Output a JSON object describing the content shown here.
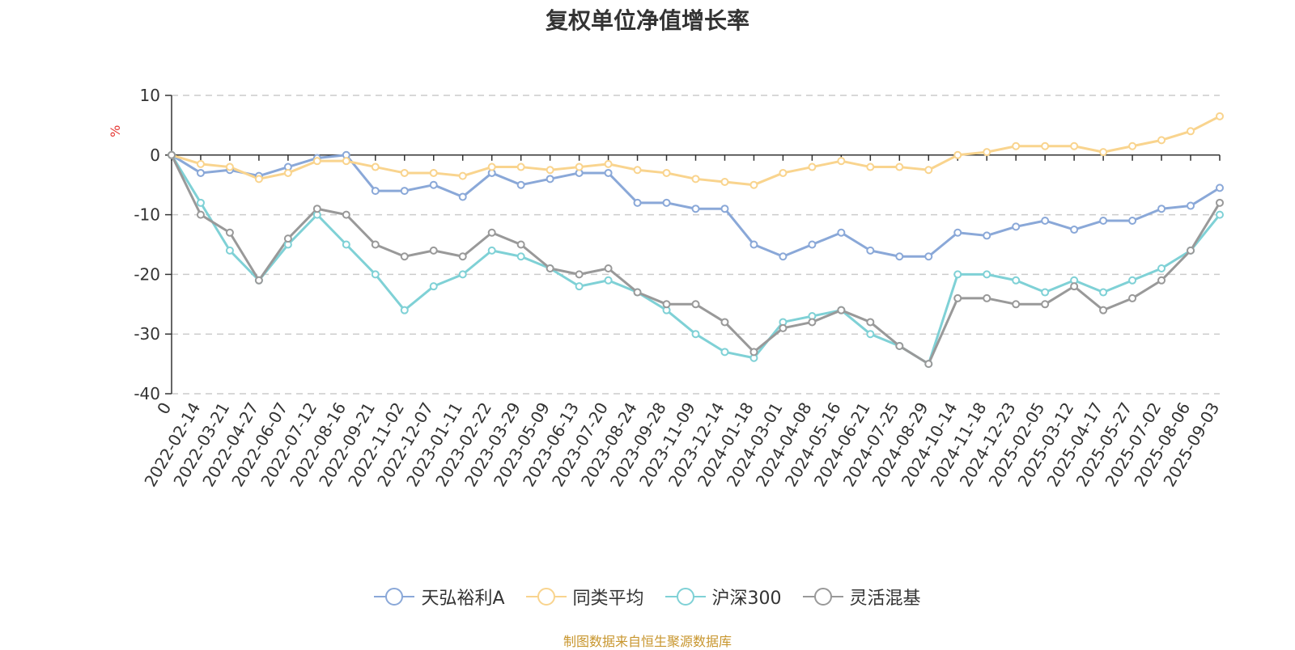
{
  "title": "复权单位净值增长率",
  "source_note": "制图数据来自恒生聚源数据库",
  "chart_data": {
    "type": "line",
    "title": "复权单位净值增长率",
    "ylabel": "%",
    "ylim": [
      -40,
      10
    ],
    "yticks": [
      10,
      0,
      -10,
      -20,
      -30,
      -40
    ],
    "grid": true,
    "legend_position": "bottom",
    "x_tick_labels": [
      "0",
      "2022-02-14",
      "2022-03-21",
      "2022-04-27",
      "2022-06-07",
      "2022-07-12",
      "2022-08-16",
      "2022-09-21",
      "2022-11-02",
      "2022-12-07",
      "2023-01-11",
      "2023-02-22",
      "2023-03-29",
      "2023-05-09",
      "2023-06-13",
      "2023-07-20",
      "2023-08-24",
      "2023-09-28",
      "2023-11-09",
      "2023-12-14",
      "2024-01-18",
      "2024-03-01",
      "2024-04-08",
      "2024-05-16",
      "2024-06-21",
      "2024-07-25",
      "2024-08-29",
      "2024-10-14",
      "2024-11-18",
      "2024-12-23",
      "2025-02-05",
      "2025-03-12",
      "2025-04-17",
      "2025-05-27",
      "2025-07-02",
      "2025-08-06",
      "2025-09-03"
    ],
    "x_positions": [
      0,
      1,
      2,
      3,
      4,
      5,
      6,
      7,
      8,
      9,
      10,
      11,
      12,
      13,
      14,
      15,
      16,
      17,
      18,
      19,
      20,
      21,
      22,
      23,
      24,
      25,
      26,
      27,
      28,
      29,
      30,
      31,
      32,
      33,
      34,
      35,
      36
    ],
    "series": [
      {
        "name": "天弘裕利A",
        "color": "#8aa8d8",
        "values": [
          0,
          -3,
          -2.5,
          -3.5,
          -2,
          -0.5,
          0,
          -6,
          -6,
          -5,
          -7,
          -3,
          -5,
          -4,
          -3,
          -3,
          -8,
          -8,
          -9,
          -9,
          -15,
          -17,
          -15,
          -13,
          -16,
          -17,
          -17,
          -13,
          -13.5,
          -12,
          -11,
          -12.5,
          -11,
          -11,
          -9,
          -8.5,
          -5.5
        ]
      },
      {
        "name": "同类平均",
        "color": "#f9d48e",
        "values": [
          0,
          -1.5,
          -2,
          -4,
          -3,
          -1,
          -1,
          -2,
          -3,
          -3,
          -3.5,
          -2,
          -2,
          -2.5,
          -2,
          -1.5,
          -2.5,
          -3,
          -4,
          -4.5,
          -5,
          -3,
          -2,
          -1,
          -2,
          -2,
          -2.5,
          0,
          0.5,
          1.5,
          1.5,
          1.5,
          0.5,
          1.5,
          2.5,
          4,
          6.5
        ]
      },
      {
        "name": "沪深300",
        "color": "#7fd1d6",
        "values": [
          0,
          -8,
          -16,
          -21,
          -15,
          -10,
          -15,
          -20,
          -26,
          -22,
          -20,
          -16,
          -17,
          -19,
          -22,
          -21,
          -23,
          -26,
          -30,
          -33,
          -34,
          -28,
          -27,
          -26,
          -30,
          -32,
          -35,
          -20,
          -20,
          -21,
          -23,
          -21,
          -23,
          -21,
          -19,
          -16,
          -10
        ]
      },
      {
        "name": "灵活混基",
        "color": "#999999",
        "values": [
          0,
          -10,
          -13,
          -21,
          -14,
          -9,
          -10,
          -15,
          -17,
          -16,
          -17,
          -13,
          -15,
          -19,
          -20,
          -19,
          -23,
          -25,
          -25,
          -28,
          -33,
          -29,
          -28,
          -26,
          -28,
          -32,
          -35,
          -24,
          -24,
          -25,
          -25,
          -22,
          -26,
          -24,
          -21,
          -16,
          -8
        ]
      }
    ]
  },
  "colors": {
    "axis": "#333333",
    "grid": "#cccccc",
    "title": "#333333",
    "source": "#c8962e",
    "unit": "#e53935"
  }
}
